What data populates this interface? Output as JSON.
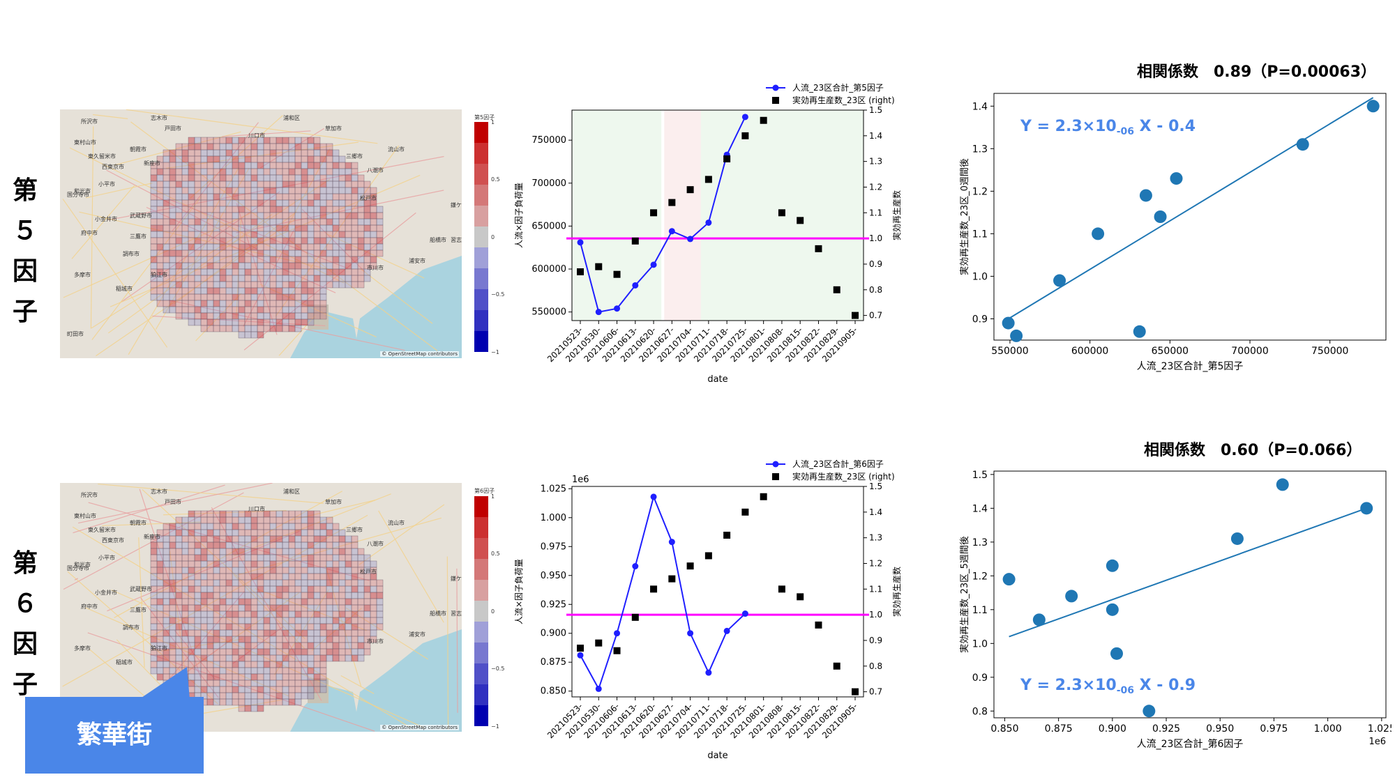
{
  "rows": [
    {
      "label": "第\n５\n因子",
      "colorbar": {
        "title": "第5因子",
        "ticks": [
          "1",
          "0.5",
          "0",
          "−0.5",
          "−1"
        ]
      },
      "osm_credit": "© OpenStreetMap contributors",
      "corr_title": "相関係数　0.89（P=0.00063）",
      "regression_eq": "Y = 2.3×10-06 X - 0.4",
      "ts_legend": [
        "人流_23区合計_第5因子",
        "実効再生産数_23区 (right)"
      ],
      "ts_ylabel": "人流×因子負荷量",
      "ts_y2label": "実効再生産数",
      "ts_xlabel": "date",
      "ts_offset": "",
      "sc_xlabel": "人流_23区合計_第5因子",
      "sc_ylabel": "実効再生産数_23区_0週間後",
      "sc_offset": "",
      "sc_xticks": [
        "550000",
        "600000",
        "650000",
        "700000",
        "750000"
      ],
      "sc_yticks": [
        "0.9",
        "1.0",
        "1.1",
        "1.2",
        "1.3",
        "1.4"
      ],
      "ts_yticks": [
        "550000",
        "600000",
        "650000",
        "700000",
        "750000"
      ],
      "ts_y2ticks": [
        "0.7",
        "0.8",
        "0.9",
        "1.0",
        "1.1",
        "1.2",
        "1.3",
        "1.4",
        "1.5"
      ]
    },
    {
      "label": "第\n６\n因子",
      "colorbar": {
        "title": "第6因子",
        "ticks": [
          "1",
          "0.5",
          "0",
          "−0.5",
          "−1"
        ]
      },
      "osm_credit": "© OpenStreetMap contributors",
      "corr_title": "相関係数　0.60（P=0.066）",
      "regression_eq": "Y = 2.3×10-06 X - 0.9",
      "ts_legend": [
        "人流_23区合計_第6因子",
        "実効再生産数_23区 (right)"
      ],
      "ts_ylabel": "人流×因子負荷量",
      "ts_y2label": "実効再生産数",
      "ts_xlabel": "date",
      "ts_offset": "1e6",
      "sc_xlabel": "人流_23区合計_第6因子",
      "sc_ylabel": "実効再生産数_23区_5週間後",
      "sc_offset": "1e6",
      "sc_xticks": [
        "0.850",
        "0.875",
        "0.900",
        "0.925",
        "0.950",
        "0.975",
        "1.000",
        "1.025"
      ],
      "sc_yticks": [
        "0.8",
        "0.9",
        "1.0",
        "1.1",
        "1.2",
        "1.3",
        "1.4",
        "1.5"
      ],
      "ts_yticks": [
        "0.850",
        "0.875",
        "0.900",
        "0.925",
        "0.950",
        "0.975",
        "1.000",
        "1.025"
      ],
      "ts_y2ticks": [
        "0.7",
        "0.8",
        "0.9",
        "1.0",
        "1.1",
        "1.2",
        "1.3",
        "1.4",
        "1.5"
      ]
    }
  ],
  "callout": "繁華街",
  "map_place_labels": [
    "所沢市",
    "東村山市",
    "東久留米市",
    "西東京市",
    "小平市",
    "国分寺市",
    "府中市",
    "小金井市",
    "武蔵野市",
    "三鷹市",
    "調布市",
    "狛江市",
    "稲城市",
    "多摩市",
    "町田市",
    "志木市",
    "朝霞市",
    "新座市",
    "和光市",
    "戸田市",
    "川口市",
    "草加市",
    "八潮市",
    "三郷市",
    "松戸市",
    "市川市",
    "船橋市",
    "浦安市",
    "習志野市",
    "鎌ケ谷市",
    "流山市",
    "浦和区"
  ],
  "chart_data": [
    {
      "type": "line",
      "title": "",
      "x": [
        "20210523-",
        "20210530-",
        "20210606-",
        "20210613-",
        "20210620-",
        "20210627-",
        "20210704-",
        "20210711-",
        "20210718-",
        "20210725-",
        "20210801-",
        "20210808-",
        "20210815-",
        "20210822-",
        "20210829-",
        "20210905-"
      ],
      "series": [
        {
          "name": "人流_23区合計_第5因子",
          "axis": "left",
          "style": "line-marker",
          "color": "#1f1fff",
          "values": [
            631000,
            550000,
            554000,
            581000,
            605000,
            644000,
            635000,
            654000,
            733000,
            777000,
            null,
            null,
            null,
            null,
            null,
            null
          ]
        },
        {
          "name": "実効再生産数_23区 (right)",
          "axis": "right",
          "style": "square",
          "color": "#000000",
          "values": [
            0.87,
            0.89,
            0.86,
            0.99,
            1.1,
            1.14,
            1.19,
            1.23,
            1.31,
            1.4,
            1.46,
            1.1,
            1.07,
            0.96,
            0.8,
            0.7
          ]
        }
      ],
      "ylim": [
        540000,
        785000
      ],
      "y2lim": [
        0.68,
        1.5
      ],
      "hline_right": 1.0,
      "hline_color": "#ff00ff",
      "shaded_periods": [
        {
          "from": "20210523-",
          "to": "20210620-",
          "color": "#eef8ee"
        },
        {
          "from": "20210627-",
          "to": "20210711-",
          "color": "#fbeeee"
        },
        {
          "from": "20210711-",
          "to": "20210905-",
          "color": "#eef8ee"
        }
      ],
      "grid": false,
      "legend": "top-right"
    },
    {
      "type": "scatter",
      "title": "相関係数　0.89（P=0.00063）",
      "points": [
        [
          549000,
          0.89
        ],
        [
          554000,
          0.86
        ],
        [
          581000,
          0.99
        ],
        [
          605000,
          1.1
        ],
        [
          631000,
          0.87
        ],
        [
          635000,
          1.19
        ],
        [
          644000,
          1.14
        ],
        [
          654000,
          1.23
        ],
        [
          733000,
          1.31
        ],
        [
          777000,
          1.4
        ]
      ],
      "trendline": [
        [
          549000,
          0.9
        ],
        [
          777000,
          1.42
        ]
      ],
      "xlim": [
        540000,
        785000
      ],
      "ylim": [
        0.85,
        1.43
      ],
      "point_color": "#1f77b4",
      "grid": false
    },
    {
      "type": "line",
      "title": "",
      "x": [
        "20210523-",
        "20210530-",
        "20210606-",
        "20210613-",
        "20210620-",
        "20210627-",
        "20210704-",
        "20210711-",
        "20210718-",
        "20210725-",
        "20210801-",
        "20210808-",
        "20210815-",
        "20210822-",
        "20210829-",
        "20210905-"
      ],
      "series": [
        {
          "name": "人流_23区合計_第6因子",
          "axis": "left",
          "style": "line-marker",
          "color": "#1f1fff",
          "values": [
            0.881,
            0.852,
            0.9,
            0.958,
            1.018,
            0.979,
            0.9,
            0.866,
            0.902,
            0.917,
            null,
            null,
            null,
            null,
            null,
            null
          ]
        },
        {
          "name": "実効再生産数_23区 (right)",
          "axis": "right",
          "style": "square",
          "color": "#000000",
          "values": [
            0.87,
            0.89,
            0.86,
            0.99,
            1.1,
            1.14,
            1.19,
            1.23,
            1.31,
            1.4,
            1.46,
            1.1,
            1.07,
            0.96,
            0.8,
            0.7
          ]
        }
      ],
      "ylim": [
        0.845,
        1.027
      ],
      "y2lim": [
        0.68,
        1.5
      ],
      "hline_right": 1.0,
      "hline_color": "#ff00ff",
      "grid": false,
      "legend": "top-right"
    },
    {
      "type": "scatter",
      "title": "相関係数　0.60（P=0.066）",
      "points": [
        [
          0.852,
          1.19
        ],
        [
          0.866,
          1.07
        ],
        [
          0.881,
          1.14
        ],
        [
          0.9,
          1.1
        ],
        [
          0.9,
          1.23
        ],
        [
          0.902,
          0.97
        ],
        [
          0.917,
          0.8
        ],
        [
          0.958,
          1.31
        ],
        [
          0.979,
          1.47
        ],
        [
          1.018,
          1.4
        ]
      ],
      "trendline": [
        [
          0.852,
          1.02
        ],
        [
          1.018,
          1.4
        ]
      ],
      "xlim": [
        0.845,
        1.027
      ],
      "ylim": [
        0.78,
        1.51
      ],
      "point_color": "#1f77b4",
      "grid": false
    }
  ]
}
